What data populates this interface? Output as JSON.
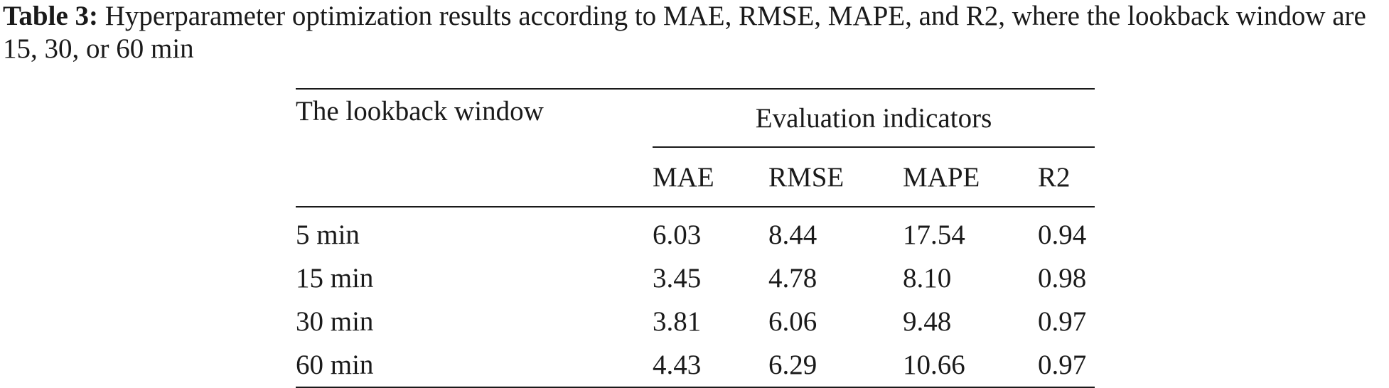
{
  "caption": {
    "label": "Table 3:",
    "text": "Hyperparameter optimization results according to MAE, RMSE, MAPE, and R2, where the lookback window are 15, 30, or 60 min"
  },
  "table": {
    "row_header": "The lookback window",
    "group_header": "Evaluation indicators",
    "columns": [
      "MAE",
      "RMSE",
      "MAPE",
      "R2"
    ],
    "rows": [
      {
        "window": "5 min",
        "values": [
          "6.03",
          "8.44",
          "17.54",
          "0.94"
        ]
      },
      {
        "window": "15 min",
        "values": [
          "3.45",
          "4.78",
          "8.10",
          "0.98"
        ]
      },
      {
        "window": "30 min",
        "values": [
          "3.81",
          "6.06",
          "9.48",
          "0.97"
        ]
      },
      {
        "window": "60 min",
        "values": [
          "4.43",
          "6.29",
          "10.66",
          "0.97"
        ]
      }
    ]
  }
}
